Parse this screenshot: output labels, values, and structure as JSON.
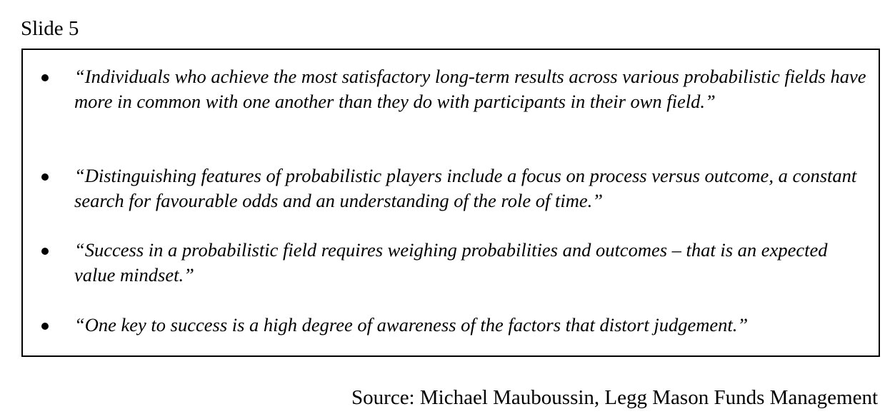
{
  "slide": {
    "label": "Slide 5"
  },
  "quotes": [
    {
      "text": "“Individuals who achieve the most satisfactory long-term results across various probabilistic fields have more in common with one another than they do with participants in their own field.”"
    },
    {
      "text": "“Distinguishing features of probabilistic players include a focus on process versus outcome, a constant search for favourable odds and an understanding of the role of time.”"
    },
    {
      "text": "“Success in a probabilistic field requires weighing probabilities and outcomes – that is an expected value mindset.”"
    },
    {
      "text": "“One key to success is a high degree of awareness of the factors that distort judgement.”"
    }
  ],
  "source": {
    "text": "Source: Michael Mauboussin, Legg Mason Funds Management"
  }
}
